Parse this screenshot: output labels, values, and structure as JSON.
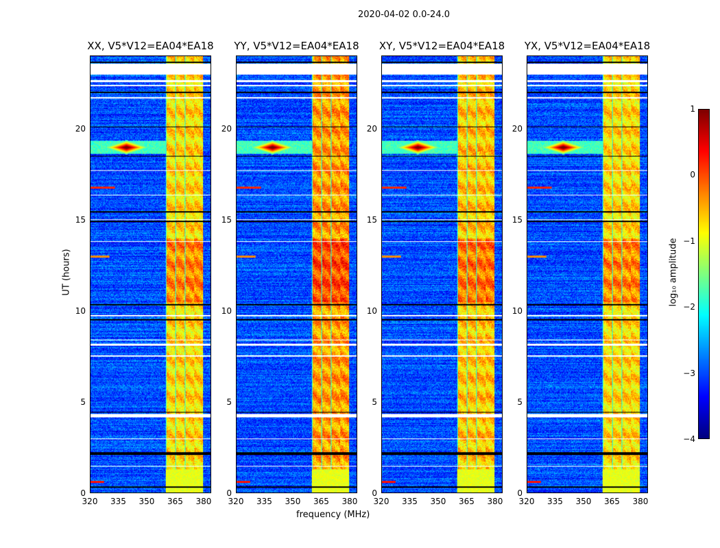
{
  "chart_data": {
    "type": "heatmap",
    "title": "2020-04-02 0.0-24.0",
    "xlabel": "frequency (MHz)",
    "ylabel": "UT (hours)",
    "xlim": [
      320,
      384
    ],
    "ylim": [
      0,
      24
    ],
    "xticks": [
      "320",
      "335",
      "350",
      "365",
      "380"
    ],
    "xtick_values": [
      320,
      335,
      350,
      365,
      380
    ],
    "yticks": [
      "0",
      "5",
      "10",
      "15",
      "20"
    ],
    "ytick_values": [
      0,
      5,
      10,
      15,
      20
    ],
    "panels": [
      {
        "title": "XX, V5*V12=EA04*EA18",
        "band_level": -0.7
      },
      {
        "title": "YY, V5*V12=EA04*EA18",
        "band_level": -0.4
      },
      {
        "title": "XY, V5*V12=EA04*EA18",
        "band_level": -0.6
      },
      {
        "title": "YX, V5*V12=EA04*EA18",
        "band_level": -0.7
      }
    ],
    "bright_band_mhz": [
      360,
      380
    ],
    "rfi_event_hour": 19.0,
    "rfi_event_mhz": 339,
    "colorbar": {
      "label": "log₁₀ amplitude",
      "range": [
        -4,
        1
      ],
      "ticks": [
        "1",
        "0",
        "−1",
        "−2",
        "−3",
        "−4"
      ],
      "tick_values": [
        1,
        0,
        -1,
        -2,
        -3,
        -4
      ],
      "colormap": "jet"
    }
  }
}
